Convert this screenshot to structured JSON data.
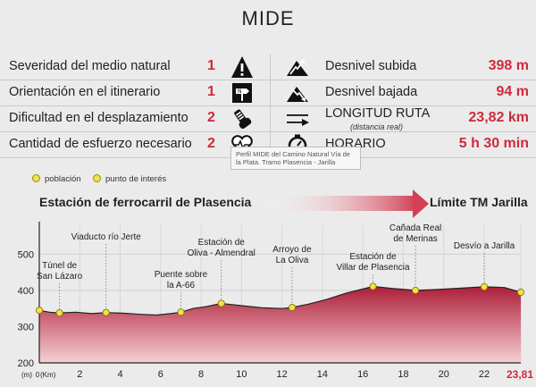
{
  "title": "MIDE",
  "mide": {
    "rows": [
      {
        "label": "Severidad del medio natural",
        "value": "1",
        "icon": "warning-triangle-icon",
        "right_icon": "mountain-ascent-icon",
        "right_label": "Desnivel subida",
        "right_sub": "",
        "right_value": "398 m"
      },
      {
        "label": "Orientación en el itinerario",
        "value": "1",
        "icon": "signpost-icon",
        "right_icon": "mountain-descent-icon",
        "right_label": "Desnivel bajada",
        "right_sub": "",
        "right_value": "94 m"
      },
      {
        "label": "Dificultad en el desplazamiento",
        "value": "2",
        "icon": "boot-icon",
        "right_icon": "distance-arrow-icon",
        "right_label": "LONGITUD RUTA",
        "right_sub": "(distancia real)",
        "right_value": "23,82 km"
      },
      {
        "label": "Cantidad de esfuerzo necesario",
        "value": "2",
        "icon": "heart-effort-icon",
        "right_icon": "stopwatch-icon",
        "right_label": "HORARIO",
        "right_sub": "",
        "right_value": "5 h 30 min"
      }
    ]
  },
  "tooltip": "Perfil MIDE del Camino Natural Vía de la Plata. Tramo Plasencia - Jarilla",
  "legend": {
    "poblacion": "población",
    "interes": "punto de interés"
  },
  "route": {
    "start": "Estación de ferrocarril de Plasencia",
    "end": "Límite TM Jarilla"
  },
  "colors": {
    "accent": "#d0293c",
    "profile_top": "#b0213a",
    "profile_bottom": "#f4c6cc",
    "marker": "#f1e24a"
  },
  "chart_data": {
    "type": "area",
    "xlabel": "(Km)",
    "ylabel": "(m)",
    "xlim": [
      0,
      23.81
    ],
    "ylim": [
      200,
      580
    ],
    "yticks": [
      "200",
      "300",
      "400",
      "500"
    ],
    "xticks": [
      "0",
      "2",
      "4",
      "6",
      "8",
      "10",
      "12",
      "14",
      "16",
      "18",
      "20",
      "22"
    ],
    "x_end_label": "23,81",
    "profile": [
      [
        0,
        345
      ],
      [
        0.5,
        340
      ],
      [
        1,
        338
      ],
      [
        1.8,
        340
      ],
      [
        2.6,
        336
      ],
      [
        3.3,
        339
      ],
      [
        4.2,
        337
      ],
      [
        5,
        334
      ],
      [
        5.8,
        332
      ],
      [
        6.5,
        336
      ],
      [
        7,
        340
      ],
      [
        7.6,
        350
      ],
      [
        8.3,
        356
      ],
      [
        9,
        364
      ],
      [
        10,
        358
      ],
      [
        11,
        352
      ],
      [
        12,
        350
      ],
      [
        12.5,
        353
      ],
      [
        13.3,
        362
      ],
      [
        14.2,
        375
      ],
      [
        15.2,
        393
      ],
      [
        16.5,
        411
      ],
      [
        17.5,
        405
      ],
      [
        18.6,
        400
      ],
      [
        19.5,
        402
      ],
      [
        20.5,
        405
      ],
      [
        22,
        410
      ],
      [
        23,
        408
      ],
      [
        23.81,
        395
      ]
    ],
    "points": [
      {
        "name": "",
        "x": 0,
        "y": 345
      },
      {
        "name": "Túnel de San Lázaro",
        "x": 1.0,
        "y": 338,
        "lines": [
          "Túnel de",
          "San Lázaro"
        ]
      },
      {
        "name": "Viaducto río Jerte",
        "x": 3.3,
        "y": 339,
        "lines": [
          "Viaducto río Jerte"
        ]
      },
      {
        "name": "Puente sobre la A-66",
        "x": 7.0,
        "y": 340,
        "lines": [
          "Puente sobre",
          "la A-66"
        ]
      },
      {
        "name": "Estación de Oliva - Almendral",
        "x": 9.0,
        "y": 364,
        "lines": [
          "Estación de",
          "Oliva - Almendral"
        ]
      },
      {
        "name": "Arroyo de La Oliva",
        "x": 12.5,
        "y": 353,
        "lines": [
          "Arroyo de",
          "La Oliva"
        ]
      },
      {
        "name": "Estación de Villar de Plasencia",
        "x": 16.5,
        "y": 411,
        "lines": [
          "Estación de",
          "Villar de Plasencia"
        ]
      },
      {
        "name": "Cañada Real de Merinas",
        "x": 18.6,
        "y": 400,
        "lines": [
          "Cañada Real",
          "de Merinas"
        ]
      },
      {
        "name": "Desvío a Jarilla",
        "x": 22.0,
        "y": 410,
        "lines": [
          "Desvío a Jarilla"
        ]
      },
      {
        "name": "",
        "x": 23.81,
        "y": 395
      }
    ]
  }
}
